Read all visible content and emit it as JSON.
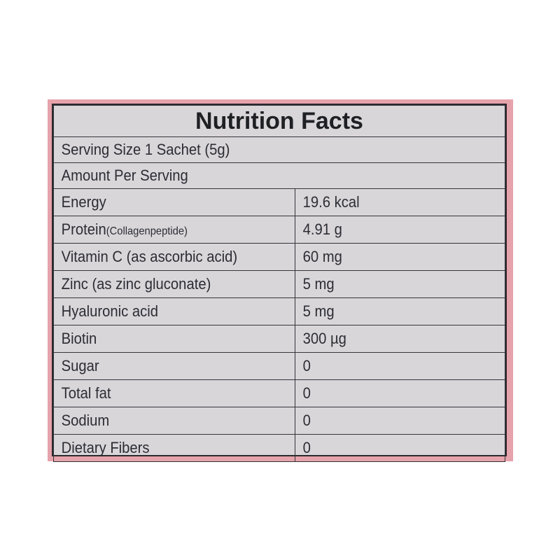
{
  "colors": {
    "frame": "#e6a3ab",
    "panel": "#d9d6da",
    "text": "#2b2d33"
  },
  "title": "Nutrition Facts",
  "serving_size": "Serving Size 1 Sachet (5g)",
  "amount_per_serving": "Amount Per Serving",
  "rows": [
    {
      "label": "Energy",
      "value": "19.6 kcal"
    },
    {
      "label": "Protein",
      "sub": "(Collagenpeptide)",
      "value": "4.91 g"
    },
    {
      "label": "Vitamin C (as ascorbic acid)",
      "value": "60 mg"
    },
    {
      "label": "Zinc (as zinc gluconate)",
      "value": "5 mg"
    },
    {
      "label": "Hyaluronic acid",
      "value": "5 mg"
    },
    {
      "label": "Biotin",
      "value": "300 µg"
    },
    {
      "label": "Sugar",
      "value": "0"
    },
    {
      "label": "Total fat",
      "value": "0"
    },
    {
      "label": "Sodium",
      "value": "0"
    },
    {
      "label": "Dietary Fibers",
      "value": "0"
    }
  ]
}
